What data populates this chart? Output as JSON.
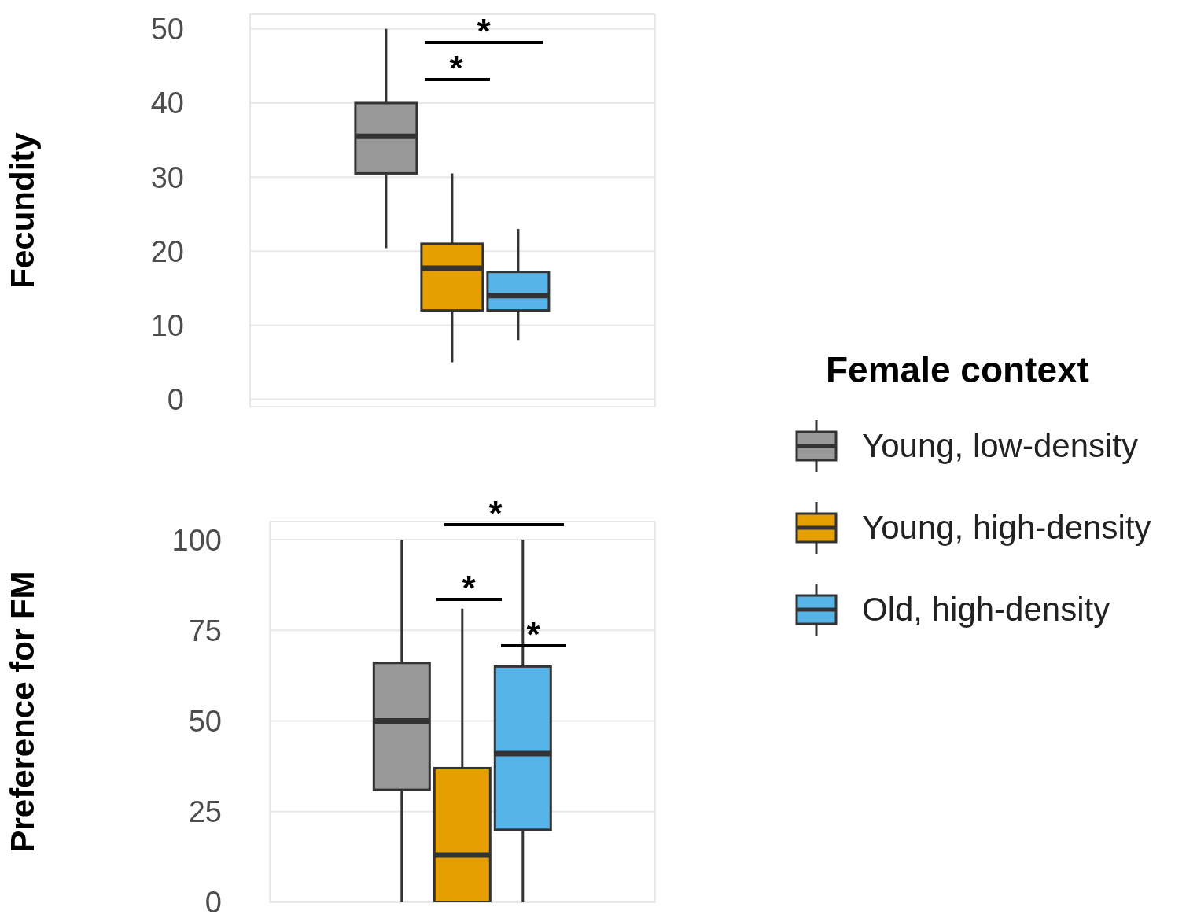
{
  "chart_data": [
    {
      "type": "box",
      "ylabel": "Fecundity",
      "categories": [
        null
      ],
      "ylim": [
        -1,
        52
      ],
      "yticks": [
        0,
        10,
        20,
        30,
        40,
        50
      ],
      "grid": true,
      "tick_labels": "y",
      "legend": "right",
      "legend_title": "Female context",
      "annotations": [
        "*",
        "*"
      ],
      "series": [
        {
          "name": "Young, low-density",
          "color": "#999999",
          "boxes": [
            {
              "low": 20.4,
              "q1": 30.5,
              "median": 35.5,
              "q3": 40,
              "high": 50
            }
          ]
        },
        {
          "name": "Young, high-density",
          "color": "#e69f00",
          "boxes": [
            {
              "low": 5,
              "q1": 12,
              "median": 17.7,
              "q3": 21,
              "high": 30.5
            }
          ]
        },
        {
          "name": "Old, high-density",
          "color": "#56b4e9",
          "boxes": [
            {
              "low": 8,
              "q1": 12,
              "median": 14,
              "q3": 17.2,
              "high": 23
            }
          ]
        }
      ]
    },
    {
      "type": "box",
      "ylabel": "Preference for FM",
      "categories": [
        null
      ],
      "ylim": [
        0,
        105
      ],
      "yticks": [
        0,
        25,
        50,
        75,
        100
      ],
      "grid": true,
      "tick_labels": "y",
      "annotations": [
        "*",
        "*",
        "*"
      ],
      "series": [
        {
          "color": "#999999",
          "boxes": [
            {
              "low": 0,
              "q1": 31,
              "median": 50,
              "q3": 66,
              "high": 100
            }
          ]
        },
        {
          "color": "#e69f00",
          "boxes": [
            {
              "low": 0,
              "q1": 0,
              "median": 13,
              "q3": 37,
              "high": 81
            }
          ]
        },
        {
          "color": "#56b4e9",
          "boxes": [
            {
              "low": 0,
              "q1": 20,
              "median": 41,
              "q3": 65,
              "high": 100
            }
          ]
        }
      ]
    }
  ]
}
